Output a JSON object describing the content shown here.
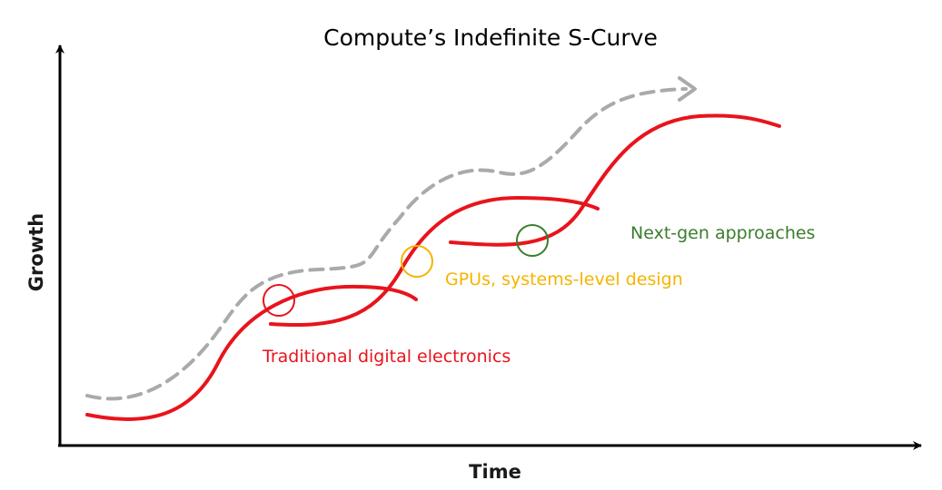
{
  "title": "Compute’s Indefinite S-Curve",
  "axes": {
    "x_label": "Time",
    "y_label": "Growth"
  },
  "colors": {
    "axis": "#000000",
    "curve": "#e8141c",
    "trend": "#aaaaaa",
    "traditional": "#e8141c",
    "gpus": "#f5b400",
    "nextgen": "#3a7d2c"
  },
  "annotations": {
    "traditional": "Traditional digital electronics",
    "gpus": "GPUs, systems-level design",
    "nextgen": "Next-gen approaches"
  }
}
